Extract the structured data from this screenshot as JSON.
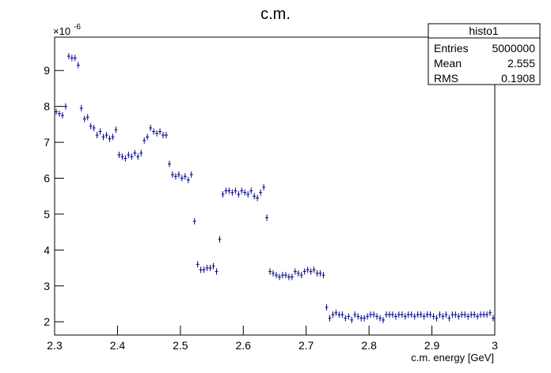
{
  "chart_data": {
    "type": "histogram-points",
    "title": "c.m.",
    "xlabel": "c.m. energy [GeV]",
    "multiplier": "×10",
    "exponent": "-6",
    "color": "#00008b",
    "stats": {
      "name": "histo1",
      "rows": [
        [
          "Entries",
          "5000000"
        ],
        [
          "Mean",
          "2.555"
        ],
        [
          "RMS",
          "0.1908"
        ]
      ]
    },
    "xlim": [
      2.3,
      3.0
    ],
    "xticks": [
      {
        "value": 2.3,
        "label": "2.3"
      },
      {
        "value": 2.4,
        "label": "2.4"
      },
      {
        "value": 2.5,
        "label": "2.5"
      },
      {
        "value": 2.6,
        "label": "2.6"
      },
      {
        "value": 2.7,
        "label": "2.7"
      },
      {
        "value": 2.8,
        "label": "2.8"
      },
      {
        "value": 2.9,
        "label": "2.9"
      },
      {
        "value": 3.0,
        "label": "3"
      }
    ],
    "ylim": [
      1.63,
      9.93
    ],
    "yticks": [
      2,
      3,
      4,
      5,
      6,
      7,
      8,
      9
    ],
    "bin_width": 0.005,
    "x": [
      2.3025,
      2.3075,
      2.3125,
      2.3175,
      2.3225,
      2.3275,
      2.3325,
      2.3375,
      2.3425,
      2.3475,
      2.3525,
      2.3575,
      2.3625,
      2.3675,
      2.3725,
      2.3775,
      2.3825,
      2.3875,
      2.3925,
      2.3975,
      2.4025,
      2.4075,
      2.4125,
      2.4175,
      2.4225,
      2.4275,
      2.4325,
      2.4375,
      2.4425,
      2.4475,
      2.4525,
      2.4575,
      2.4625,
      2.4675,
      2.4725,
      2.4775,
      2.4825,
      2.4875,
      2.4925,
      2.4975,
      2.5025,
      2.5075,
      2.5125,
      2.5175,
      2.5225,
      2.5275,
      2.5325,
      2.5375,
      2.5425,
      2.5475,
      2.5525,
      2.5575,
      2.5625,
      2.5675,
      2.5725,
      2.5775,
      2.5825,
      2.5875,
      2.5925,
      2.5975,
      2.6025,
      2.6075,
      2.6125,
      2.6175,
      2.6225,
      2.6275,
      2.6325,
      2.6375,
      2.6425,
      2.6475,
      2.6525,
      2.6575,
      2.6625,
      2.6675,
      2.6725,
      2.6775,
      2.6825,
      2.6875,
      2.6925,
      2.6975,
      2.7025,
      2.7075,
      2.7125,
      2.7175,
      2.7225,
      2.7275,
      2.7325,
      2.7375,
      2.7425,
      2.7475,
      2.7525,
      2.7575,
      2.7625,
      2.7675,
      2.7725,
      2.7775,
      2.7825,
      2.7875,
      2.7925,
      2.7975,
      2.8025,
      2.8075,
      2.8125,
      2.8175,
      2.8225,
      2.8275,
      2.8325,
      2.8375,
      2.8425,
      2.8475,
      2.8525,
      2.8575,
      2.8625,
      2.8675,
      2.8725,
      2.8775,
      2.8825,
      2.8875,
      2.8925,
      2.8975,
      2.9025,
      2.9075,
      2.9125,
      2.9175,
      2.9225,
      2.9275,
      2.9325,
      2.9375,
      2.9425,
      2.9475,
      2.9525,
      2.9575,
      2.9625,
      2.9675,
      2.9725,
      2.9775,
      2.9825,
      2.9875,
      2.9925,
      2.9975
    ],
    "values": [
      7.85,
      7.8,
      7.75,
      8.0,
      9.4,
      9.35,
      9.35,
      9.15,
      7.95,
      7.65,
      7.7,
      7.45,
      7.4,
      7.2,
      7.3,
      7.15,
      7.2,
      7.1,
      7.15,
      7.35,
      6.65,
      6.6,
      6.55,
      6.65,
      6.6,
      6.7,
      6.6,
      6.7,
      7.05,
      7.15,
      7.4,
      7.3,
      7.25,
      7.3,
      7.2,
      7.2,
      6.4,
      6.1,
      6.05,
      6.1,
      6.0,
      6.05,
      5.95,
      6.1,
      4.8,
      3.6,
      3.45,
      3.45,
      3.5,
      3.5,
      3.55,
      3.4,
      4.3,
      5.55,
      5.65,
      5.65,
      5.6,
      5.65,
      5.55,
      5.65,
      5.6,
      5.55,
      5.65,
      5.5,
      5.45,
      5.6,
      5.75,
      4.9,
      3.4,
      3.35,
      3.3,
      3.25,
      3.3,
      3.3,
      3.25,
      3.25,
      3.4,
      3.35,
      3.3,
      3.4,
      3.45,
      3.4,
      3.45,
      3.35,
      3.35,
      3.3,
      2.4,
      2.1,
      2.2,
      2.25,
      2.2,
      2.2,
      2.1,
      2.15,
      2.05,
      2.2,
      2.15,
      2.1,
      2.1,
      2.15,
      2.2,
      2.2,
      2.15,
      2.1,
      2.05,
      2.2,
      2.2,
      2.2,
      2.15,
      2.2,
      2.2,
      2.15,
      2.2,
      2.2,
      2.15,
      2.2,
      2.2,
      2.15,
      2.2,
      2.2,
      2.15,
      2.1,
      2.2,
      2.15,
      2.2,
      2.1,
      2.2,
      2.2,
      2.15,
      2.2,
      2.2,
      2.15,
      2.2,
      2.2,
      2.15,
      2.2,
      2.2,
      2.2,
      2.25,
      2.1
    ]
  }
}
